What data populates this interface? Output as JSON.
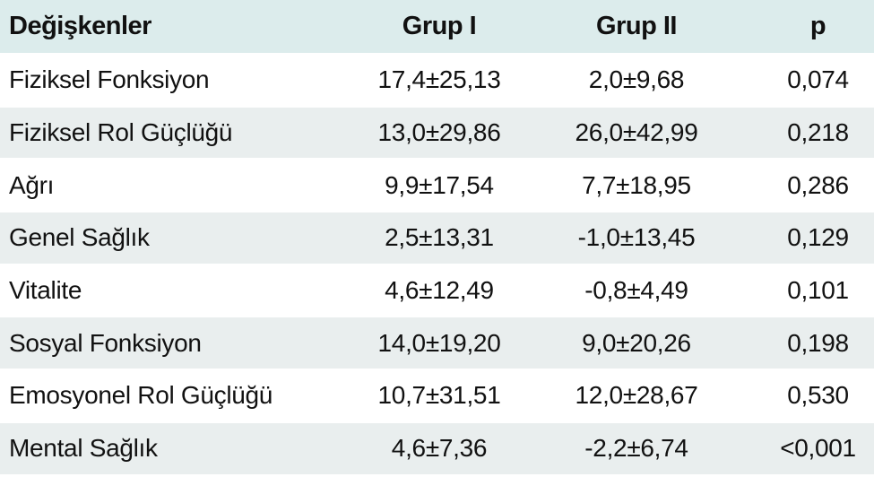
{
  "table": {
    "headers": [
      "Değişkenler",
      "Grup I",
      "Grup II",
      "p"
    ],
    "rows": [
      [
        "Fiziksel Fonksiyon",
        "17,4±25,13",
        "2,0±9,68",
        "0,074"
      ],
      [
        "Fiziksel Rol Güçlüğü",
        "13,0±29,86",
        "26,0±42,99",
        "0,218"
      ],
      [
        "Ağrı",
        "9,9±17,54",
        "7,7±18,95",
        "0,286"
      ],
      [
        "Genel Sağlık",
        "2,5±13,31",
        "-1,0±13,45",
        "0,129"
      ],
      [
        "Vitalite",
        "4,6±12,49",
        "-0,8±4,49",
        "0,101"
      ],
      [
        "Sosyal Fonksiyon",
        "14,0±19,20",
        "9,0±20,26",
        "0,198"
      ],
      [
        "Emosyonel Rol Güçlüğü",
        "10,7±31,51",
        "12,0±28,67",
        "0,530"
      ],
      [
        "Mental Sağlık",
        "4,6±7,36",
        "-2,2±6,74",
        "<0,001"
      ]
    ]
  },
  "colors": {
    "header_bg": "#dcecec",
    "stripe_bg": "#e9eeee",
    "plain_bg": "#ffffff",
    "text": "#111111"
  }
}
